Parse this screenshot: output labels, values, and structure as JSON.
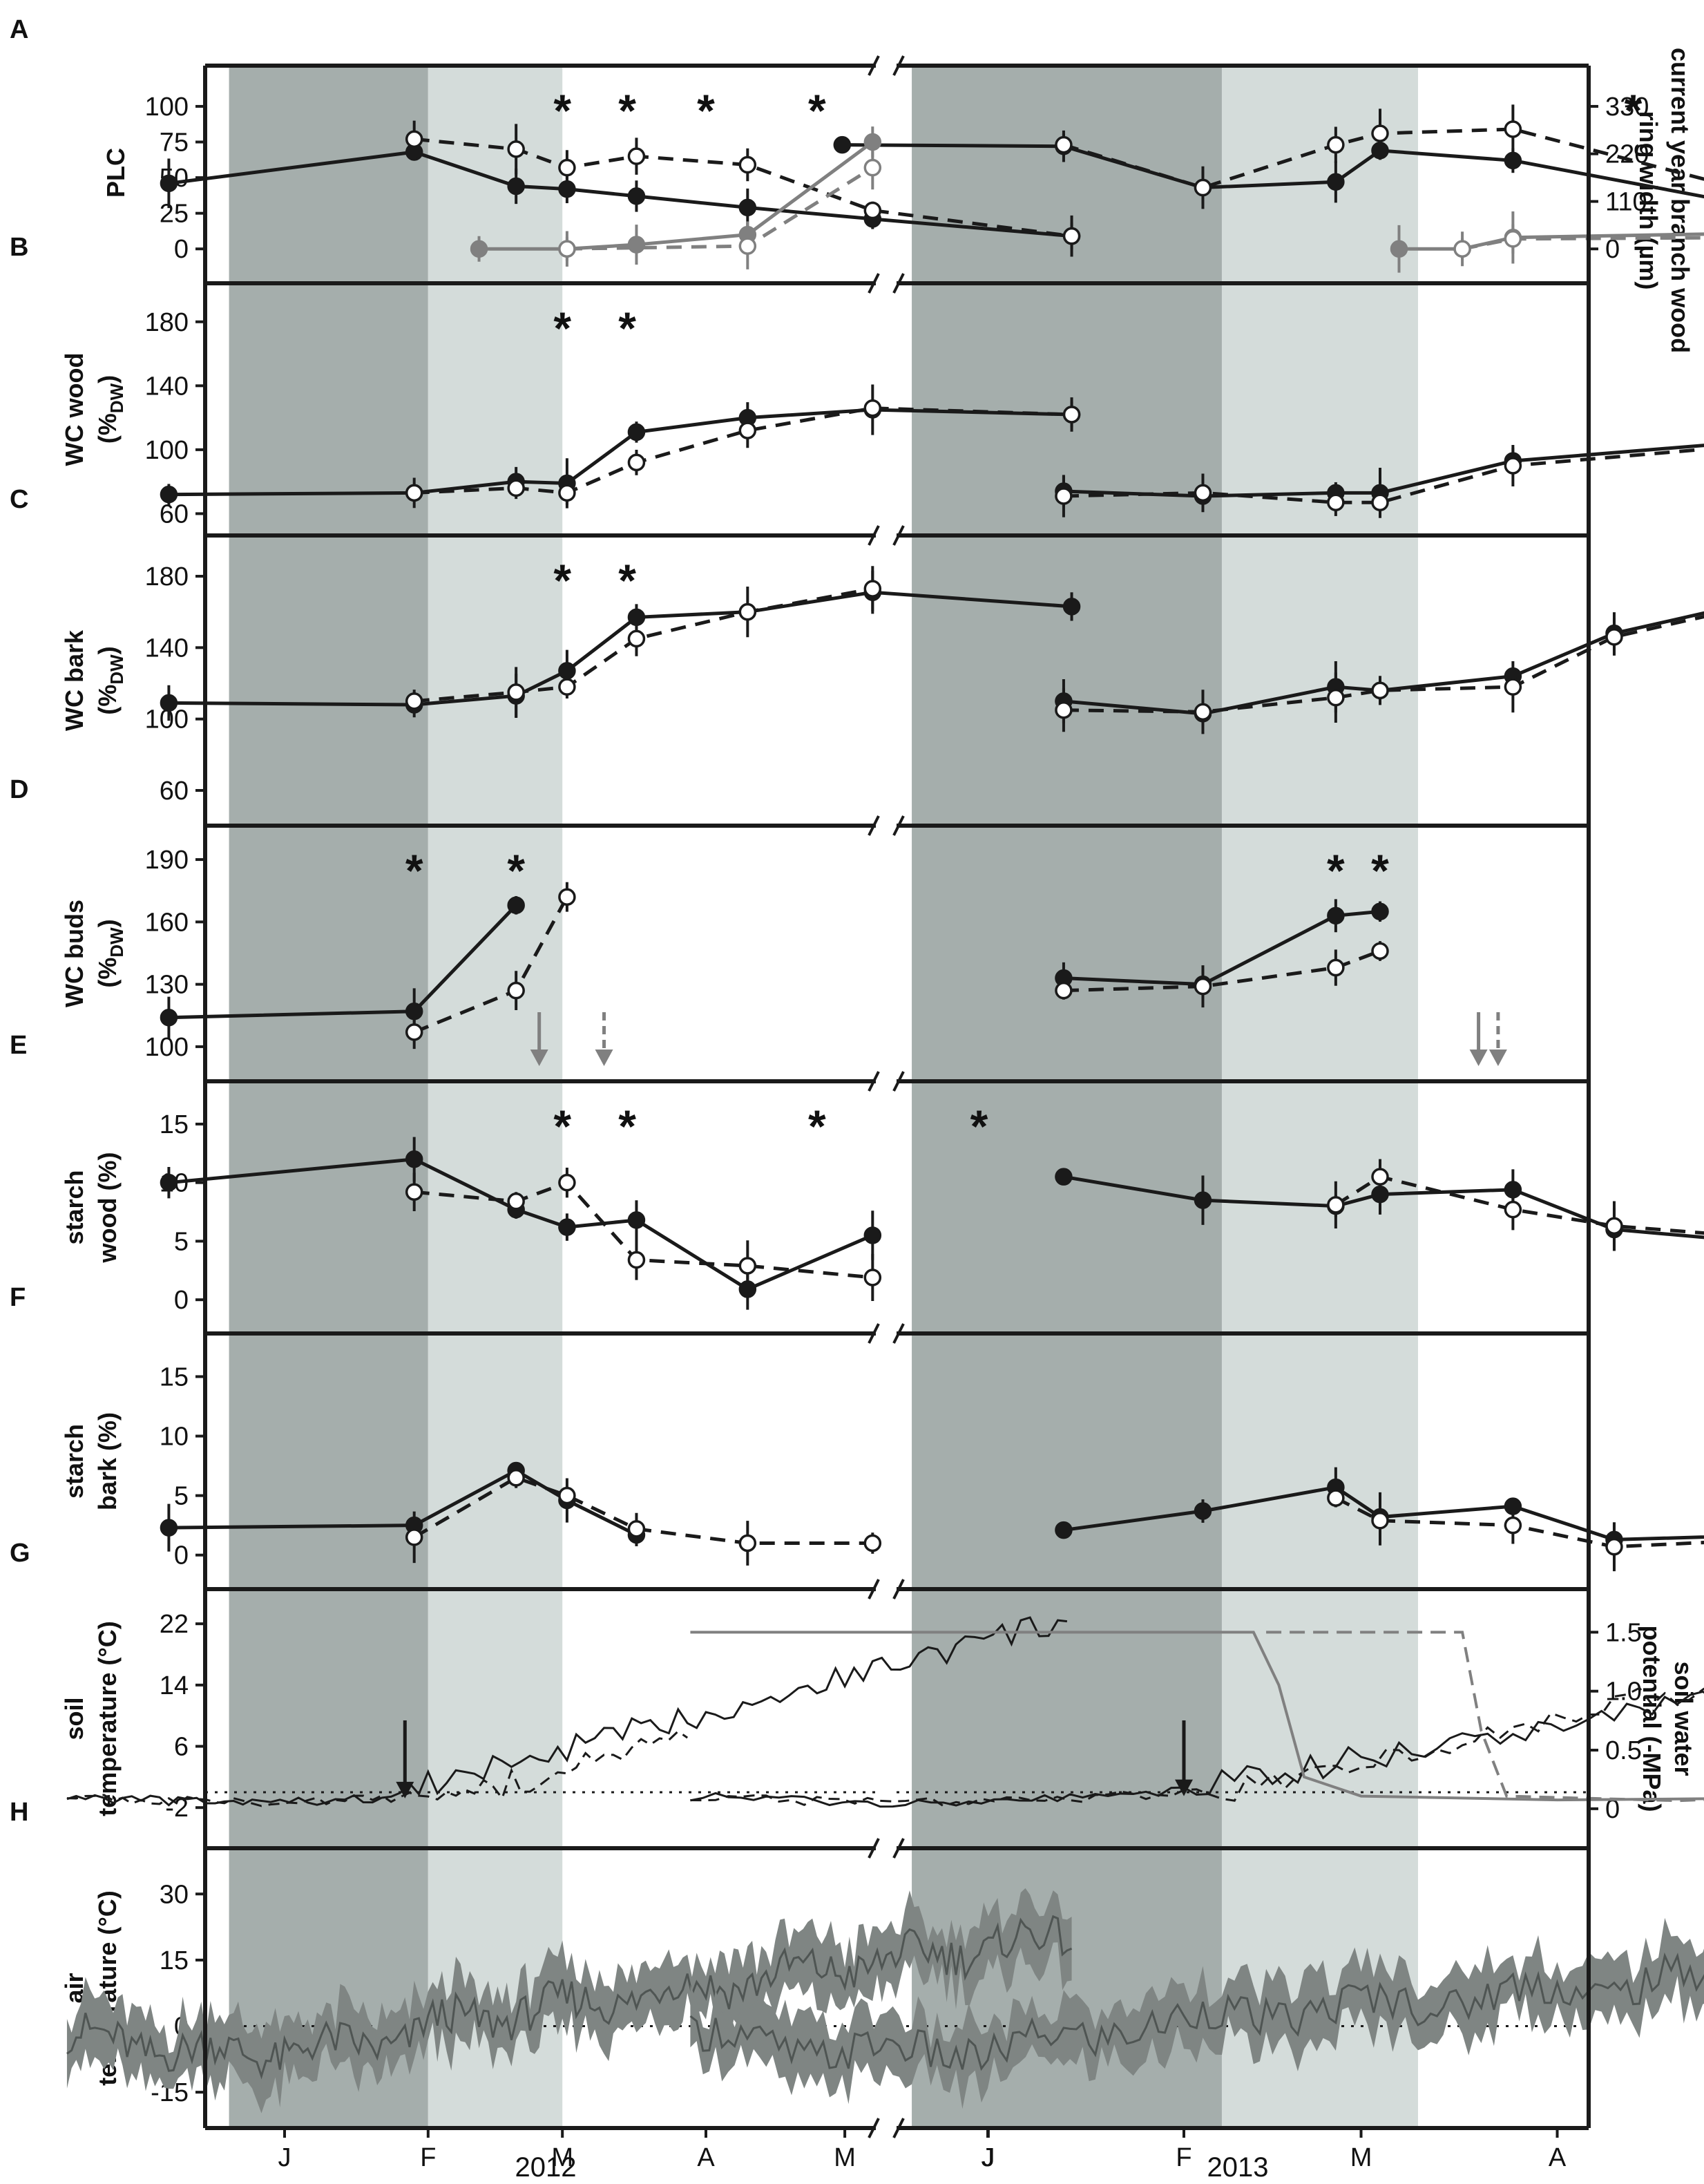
{
  "chart_data": [
    {
      "type": "line",
      "panel": "A",
      "ylabel": "PLC",
      "ylabel_right": "current year branch wood ring width (µm)",
      "ylim": [
        -12,
        115
      ],
      "yticks": [
        "0",
        "25",
        "50",
        "75",
        "100"
      ],
      "ytick_values": [
        0,
        25,
        50,
        75,
        100
      ],
      "yticks_right": [
        "0",
        "110",
        "220",
        "330"
      ],
      "ytick_right_values": [
        0,
        33.3,
        66.7,
        100
      ],
      "asterisks_2012": [
        "2012-03-01",
        "2012-03-15",
        "2012-04-01",
        "2012-04-25"
      ],
      "asterisks_2013": [
        "2013-04-13"
      ],
      "series": [
        {
          "role": "solid",
          "color": "#1a1a1a",
          "dash": false,
          "open": false,
          "2012": {
            "x": [
              "2011-12-07",
              "2012-01-29",
              "2012-02-20",
              "2012-03-02",
              "2012-03-17",
              "2012-04-10",
              "2012-05-07",
              "2012-06-19"
            ],
            "y": [
              46,
              68,
              44,
              42,
              37,
              29,
              21,
              9
            ]
          },
          "2013": {
            "x": [
              "2012-12-09",
              "2013-01-13",
              "2013-02-04",
              "2013-02-25",
              "2013-03-04",
              "2013-03-25",
              "2013-05-20",
              "2013-06-13"
            ],
            "y": [
              73,
              72,
              43,
              47,
              69,
              62,
              15,
              8
            ]
          }
        },
        {
          "role": "dashed",
          "color": "#1a1a1a",
          "dash": true,
          "open": true,
          "2012": {
            "x": [
              "2012-01-29",
              "2012-02-20",
              "2012-03-02",
              "2012-03-17",
              "2012-04-10",
              "2012-05-07",
              "2012-06-19"
            ],
            "y": [
              77,
              70,
              57,
              65,
              59,
              27,
              9
            ]
          },
          "2013": {
            "x": [
              "2013-01-13",
              "2013-02-04",
              "2013-02-25",
              "2013-03-04",
              "2013-03-25",
              "2013-05-20",
              "2013-06-13"
            ],
            "y": [
              73,
              43,
              73,
              81,
              84,
              19,
              8
            ]
          }
        },
        {
          "role": "ring width solid",
          "color": "#808080",
          "dash": false,
          "open": false,
          "2012": {
            "x": [
              "2012-02-12",
              "2012-03-02",
              "2012-03-17",
              "2012-04-10",
              "2012-05-07"
            ],
            "y": [
              0,
              0,
              3,
              10,
              75
            ]
          },
          "2013": {
            "x": [
              "2013-03-07",
              "2013-03-17",
              "2013-03-25",
              "2013-05-02",
              "2013-06-01"
            ],
            "y": [
              0,
              0,
              8,
              11,
              97
            ]
          }
        },
        {
          "role": "ring width dashed",
          "color": "#808080",
          "dash": true,
          "open": true,
          "2012": {
            "x": [
              "2012-03-02",
              "2012-04-10",
              "2012-05-07"
            ],
            "y": [
              0,
              2,
              57
            ]
          },
          "2013": {
            "x": [
              "2013-03-17",
              "2013-03-25",
              "2013-05-02",
              "2013-06-01"
            ],
            "y": [
              0,
              7,
              8,
              97
            ]
          }
        }
      ]
    },
    {
      "type": "line",
      "panel": "B",
      "ylabel": "WC wood",
      "ylabel_unit": "(%",
      "ylabel_sub": "DW",
      "ylabel_close": ")",
      "ylim": [
        55,
        192
      ],
      "yticks": [
        "60",
        "100",
        "140",
        "180"
      ],
      "ytick_values": [
        60,
        100,
        140,
        180
      ],
      "asterisks_2012": [
        "2012-03-01",
        "2012-03-15"
      ],
      "series": [
        {
          "role": "solid",
          "color": "#1a1a1a",
          "dash": false,
          "open": false,
          "2012": {
            "x": [
              "2011-12-07",
              "2012-01-29",
              "2012-02-20",
              "2012-03-02",
              "2012-03-17",
              "2012-04-10",
              "2012-05-07",
              "2012-06-19"
            ],
            "y": [
              72,
              73,
              80,
              79,
              111,
              120,
              125,
              122
            ]
          },
          "2013": {
            "x": [
              "2013-01-13",
              "2013-02-04",
              "2013-02-25",
              "2013-03-04",
              "2013-03-25",
              "2013-05-20"
            ],
            "y": [
              74,
              71,
              73,
              73,
              93,
              111
            ]
          }
        },
        {
          "role": "dashed",
          "color": "#1a1a1a",
          "dash": true,
          "open": true,
          "2012": {
            "x": [
              "2012-01-29",
              "2012-02-20",
              "2012-03-02",
              "2012-03-17",
              "2012-04-10",
              "2012-05-07",
              "2012-06-19"
            ],
            "y": [
              73,
              76,
              73,
              92,
              112,
              126,
              122
            ]
          },
          "2013": {
            "x": [
              "2013-01-13",
              "2013-02-04",
              "2013-02-25",
              "2013-03-04",
              "2013-03-25",
              "2013-05-20"
            ],
            "y": [
              71,
              73,
              67,
              67,
              90,
              109
            ]
          }
        }
      ]
    },
    {
      "type": "line",
      "panel": "C",
      "ylabel": "WC bark",
      "ylabel_unit": "(%",
      "ylabel_sub": "DW",
      "ylabel_close": ")",
      "ylim": [
        48,
        192
      ],
      "yticks": [
        "60",
        "100",
        "140",
        "180"
      ],
      "ytick_values": [
        60,
        100,
        140,
        180
      ],
      "asterisks_2012": [
        "2012-03-01",
        "2012-03-15"
      ],
      "series": [
        {
          "role": "solid",
          "color": "#1a1a1a",
          "dash": false,
          "open": false,
          "2012": {
            "x": [
              "2011-12-07",
              "2012-01-29",
              "2012-02-20",
              "2012-03-02",
              "2012-03-17",
              "2012-04-10",
              "2012-05-07",
              "2012-06-19"
            ],
            "y": [
              109,
              108,
              113,
              127,
              157,
              160,
              171,
              163
            ]
          },
          "2013": {
            "x": [
              "2013-01-13",
              "2013-02-04",
              "2013-02-25",
              "2013-03-04",
              "2013-03-25",
              "2013-04-10",
              "2013-05-20"
            ],
            "y": [
              110,
              103,
              118,
              116,
              124,
              148,
              180
            ]
          }
        },
        {
          "role": "dashed",
          "color": "#1a1a1a",
          "dash": true,
          "open": true,
          "2012": {
            "x": [
              "2012-01-29",
              "2012-02-20",
              "2012-03-02",
              "2012-03-17",
              "2012-04-10",
              "2012-05-07"
            ],
            "y": [
              110,
              115,
              118,
              145,
              160,
              173
            ]
          },
          "2013": {
            "x": [
              "2013-01-13",
              "2013-02-04",
              "2013-02-25",
              "2013-03-04",
              "2013-03-25",
              "2013-04-10",
              "2013-05-20"
            ],
            "y": [
              105,
              104,
              112,
              116,
              118,
              146,
              178
            ]
          }
        }
      ]
    },
    {
      "type": "line",
      "panel": "D",
      "ylabel": "WC buds",
      "ylabel_unit": "(%",
      "ylabel_sub": "DW",
      "ylabel_close": ")",
      "ylim": [
        90,
        197
      ],
      "yticks": [
        "100",
        "130",
        "160",
        "190"
      ],
      "ytick_values": [
        100,
        130,
        160,
        190
      ],
      "asterisks_2012": [
        "2012-01-29",
        "2012-02-20"
      ],
      "asterisks_2013": [
        "2013-02-25",
        "2013-03-04"
      ],
      "arrows_2012": [
        {
          "x": "2012-02-25",
          "dash": false
        },
        {
          "x": "2012-03-10",
          "dash": true
        }
      ],
      "arrows_2013": [
        {
          "x": "2013-03-20",
          "dash": false
        },
        {
          "x": "2013-03-22",
          "dash": true
        }
      ],
      "series": [
        {
          "role": "solid",
          "color": "#1a1a1a",
          "dash": false,
          "open": false,
          "2012": {
            "x": [
              "2011-12-07",
              "2012-01-29",
              "2012-02-20"
            ],
            "y": [
              114,
              117,
              168
            ]
          },
          "2013": {
            "x": [
              "2013-01-13",
              "2013-02-04",
              "2013-02-25",
              "2013-03-04"
            ],
            "y": [
              133,
              130,
              163,
              165
            ]
          }
        },
        {
          "role": "dashed",
          "color": "#1a1a1a",
          "dash": true,
          "open": true,
          "2012": {
            "x": [
              "2012-01-29",
              "2012-02-20",
              "2012-03-02"
            ],
            "y": [
              107,
              127,
              172
            ]
          },
          "2013": {
            "x": [
              "2013-01-13",
              "2013-02-04",
              "2013-02-25",
              "2013-03-04"
            ],
            "y": [
              127,
              129,
              138,
              146
            ]
          }
        }
      ]
    },
    {
      "type": "line",
      "panel": "E",
      "ylabel": "starch",
      "ylabel2": "wood (%)",
      "ylim": [
        -1.7,
        17
      ],
      "yticks": [
        "0",
        "5",
        "10",
        "15"
      ],
      "ytick_values": [
        0,
        5,
        10,
        15
      ],
      "asterisks_2012": [
        "2012-03-01",
        "2012-03-15",
        "2012-04-25",
        "2012-05-30"
      ],
      "series": [
        {
          "role": "solid",
          "color": "#1a1a1a",
          "dash": false,
          "open": false,
          "2012": {
            "x": [
              "2011-12-07",
              "2012-01-29",
              "2012-02-20",
              "2012-03-02",
              "2012-03-17",
              "2012-04-10",
              "2012-05-07"
            ],
            "y": [
              10,
              12,
              7.7,
              6.2,
              6.8,
              0.9,
              5.5
            ]
          },
          "2013": {
            "x": [
              "2013-01-13",
              "2013-02-04",
              "2013-02-25",
              "2013-03-04",
              "2013-03-25",
              "2013-04-10",
              "2013-05-20"
            ],
            "y": [
              10.5,
              8.5,
              8.0,
              9.0,
              9.4,
              6.0,
              4.1
            ]
          }
        },
        {
          "role": "dashed",
          "color": "#1a1a1a",
          "dash": true,
          "open": true,
          "2012": {
            "x": [
              "2012-01-29",
              "2012-02-20",
              "2012-03-02",
              "2012-03-17",
              "2012-04-10",
              "2012-05-07"
            ],
            "y": [
              9.2,
              8.4,
              10,
              3.4,
              2.9,
              1.9
            ]
          },
          "2013": {
            "x": [
              "2013-02-25",
              "2013-03-04",
              "2013-03-25",
              "2013-04-10",
              "2013-05-20"
            ],
            "y": [
              8.1,
              10.5,
              7.7,
              6.3,
              4.6
            ]
          }
        }
      ]
    },
    {
      "type": "line",
      "panel": "F",
      "ylabel": "starch",
      "ylabel2": "bark (%)",
      "ylim": [
        -1.7,
        17
      ],
      "yticks": [
        "0",
        "5",
        "10",
        "15"
      ],
      "ytick_values": [
        0,
        5,
        10,
        15
      ],
      "series": [
        {
          "role": "solid",
          "color": "#1a1a1a",
          "dash": false,
          "open": false,
          "2012": {
            "x": [
              "2011-12-07",
              "2012-01-29",
              "2012-02-20",
              "2012-03-02",
              "2012-03-17"
            ],
            "y": [
              2.3,
              2.5,
              7.1,
              4.6,
              1.7
            ]
          },
          "2013": {
            "x": [
              "2013-01-13",
              "2013-02-04",
              "2013-02-25",
              "2013-03-04",
              "2013-03-25",
              "2013-04-10",
              "2013-05-20"
            ],
            "y": [
              2.1,
              3.7,
              5.7,
              3.2,
              4.1,
              1.3,
              1.9
            ]
          }
        },
        {
          "role": "dashed",
          "color": "#1a1a1a",
          "dash": true,
          "open": true,
          "2012": {
            "x": [
              "2012-01-29",
              "2012-02-20",
              "2012-03-02",
              "2012-03-17",
              "2012-04-10",
              "2012-05-07"
            ],
            "y": [
              1.5,
              6.5,
              5.0,
              2.2,
              1.0,
              1.0
            ]
          },
          "2013": {
            "x": [
              "2013-02-25",
              "2013-03-04",
              "2013-03-25",
              "2013-04-10",
              "2013-05-20"
            ],
            "y": [
              4.8,
              2.9,
              2.5,
              0.7,
              1.7
            ]
          }
        }
      ]
    },
    {
      "type": "line",
      "panel": "G",
      "ylabel": "soil",
      "ylabel2": "temperature (°C)",
      "ylabel_right": "soil water",
      "ylabel_right2": "potential (-MPa)",
      "ylim": [
        -5.5,
        24
      ],
      "yticks": [
        "-2",
        "6",
        "14",
        "22"
      ],
      "ytick_values": [
        -2,
        6,
        14,
        22
      ],
      "yticks_right": [
        "0",
        "0.5",
        "1.0",
        "1.5"
      ],
      "ytick_right_values": [
        -2.15,
        5.5,
        13.2,
        20.9
      ],
      "dotted_zero": 0,
      "black_arrow_2012": "2012-01-27",
      "black_arrow_2013": "2013-02-01"
    },
    {
      "type": "area",
      "panel": "H",
      "ylabel": "air",
      "ylabel2": "temperature (°C)",
      "ylim": [
        -20,
        36
      ],
      "yticks": [
        "-15",
        "0",
        "15",
        "30"
      ],
      "ytick_values": [
        -15,
        0,
        15,
        30
      ],
      "dotted_zero": 0,
      "series_2012_x_start": "2011-11-15",
      "series_2012_x_end": "2012-06-19",
      "series_2013_x_start": "2012-11-15",
      "series_2013_x_end": "2013-05-24"
    }
  ],
  "panel_letters": [
    "A",
    "B",
    "C",
    "D",
    "E",
    "F",
    "G",
    "H"
  ],
  "x_axis": {
    "months_2012": [
      "J",
      "F",
      "M",
      "A",
      "M",
      "J"
    ],
    "months_2013": [
      "J",
      "F",
      "M",
      "A",
      "M",
      "J"
    ],
    "years": [
      "2012",
      "2013"
    ]
  },
  "shading": {
    "dark": "#a5aeac",
    "light": "#d4dcda",
    "dark_2012": [
      "2011-12-20",
      "2012-02-01"
    ],
    "light_2012": [
      "2012-02-01",
      "2012-03-01"
    ],
    "dark_2013": [
      "2012-12-20",
      "2013-02-07"
    ],
    "light_2013": [
      "2013-02-07",
      "2013-03-10"
    ]
  },
  "colors": {
    "black": "#1a1a1a",
    "grey": "#808080",
    "band": "#7f8583",
    "band_line": "#4f5553"
  }
}
